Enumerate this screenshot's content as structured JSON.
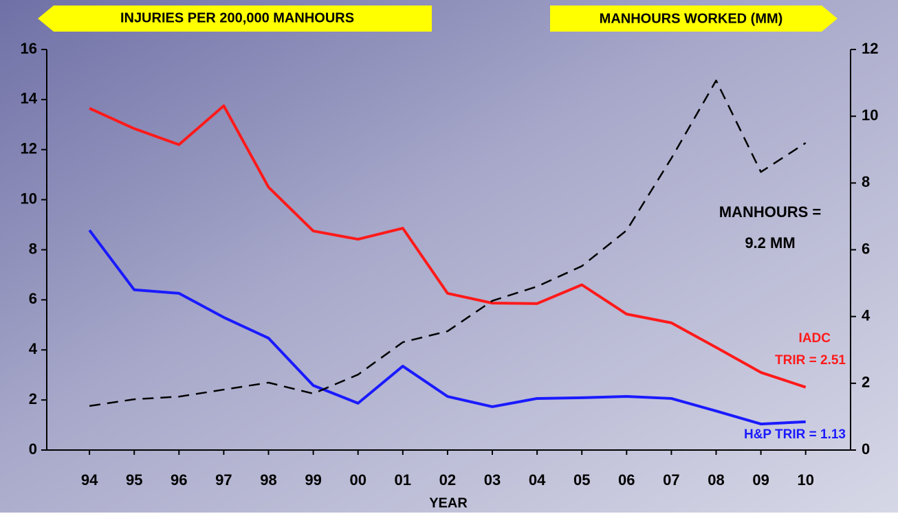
{
  "chart_data": {
    "type": "line",
    "y_axis_title": "INJURIES  PER 200,000 MANHOURS",
    "y2_axis_title": "MANHOURS WORKED (MM)",
    "x_axis_title": "YEAR",
    "categories": [
      "94",
      "95",
      "96",
      "97",
      "98",
      "99",
      "00",
      "01",
      "02",
      "03",
      "04",
      "05",
      "06",
      "07",
      "08",
      "09",
      "10"
    ],
    "series": [
      {
        "color": "#ff1a1a",
        "style": "solid",
        "values": [
          13.65,
          12.84,
          12.2,
          13.75,
          10.5,
          8.75,
          8.42,
          8.86,
          6.26,
          5.87,
          5.85,
          6.6,
          5.43,
          5.08,
          4.1,
          3.1,
          2.51
        ]
      },
      {
        "color": "#1a1aff",
        "style": "solid",
        "values": [
          8.78,
          6.4,
          6.26,
          5.3,
          4.47,
          2.58,
          1.87,
          3.35,
          2.14,
          1.73,
          2.06,
          2.09,
          2.14,
          2.06,
          1.56,
          1.04,
          1.13
        ]
      },
      {
        "color": "#000000",
        "style": "dashed",
        "axis": "y2",
        "values": [
          1.32,
          1.52,
          1.6,
          1.81,
          2.02,
          1.69,
          2.26,
          3.23,
          3.56,
          4.47,
          4.9,
          5.51,
          6.58,
          8.74,
          11.07,
          8.33,
          9.2
        ]
      }
    ],
    "annotations": [
      "MANHOURS =",
      "9.2 MM",
      "IADC",
      "TRIR = 2.51",
      "H&P TRIR = 1.13"
    ],
    "ylim": [
      0,
      16
    ],
    "yticks": [
      0,
      2,
      4,
      6,
      8,
      10,
      12,
      14,
      16
    ],
    "y2lim": [
      0,
      12
    ],
    "y2ticks": [
      0,
      2,
      4,
      6,
      8,
      10,
      12
    ],
    "grid": false
  }
}
